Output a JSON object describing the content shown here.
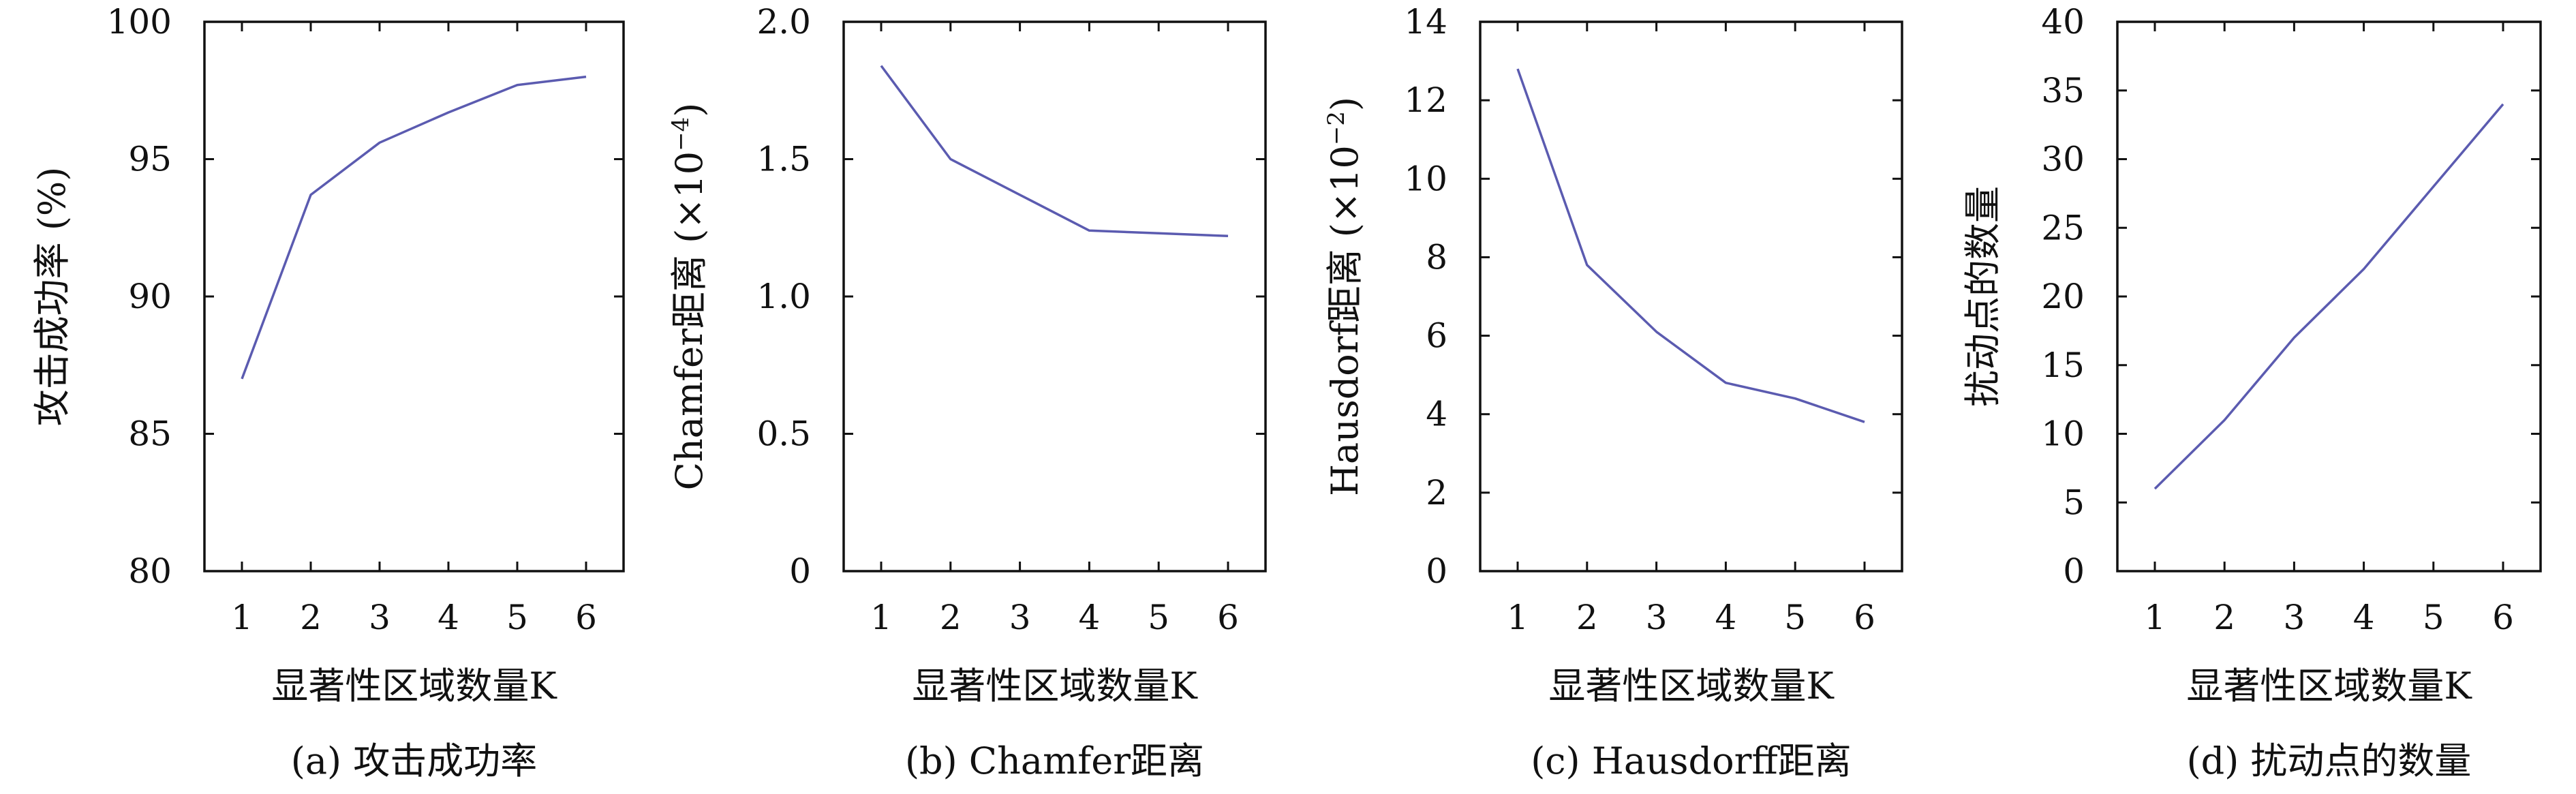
{
  "chart_data": [
    {
      "type": "line",
      "caption": "(a) 攻击成功率",
      "xlabel": "显著性区域数量K",
      "ylabel": "攻击成功率 (%)",
      "ylabel_exponent": "",
      "x": [
        1,
        2,
        3,
        4,
        5,
        6
      ],
      "x_ticks": [
        "1",
        "2",
        "3",
        "4",
        "5",
        "6"
      ],
      "ylim": [
        80,
        100
      ],
      "y_ticks": [
        80,
        85,
        90,
        95,
        100
      ],
      "y_tick_labels": [
        "80",
        "85",
        "90",
        "95",
        "100"
      ],
      "series": [
        {
          "values": [
            87.0,
            93.7,
            95.6,
            96.7,
            97.7,
            98.0
          ],
          "color": "#5b5bb0"
        }
      ],
      "grid": false
    },
    {
      "type": "line",
      "caption": "(b) Chamfer距离",
      "xlabel": "显著性区域数量K",
      "ylabel": "Chamfer距离 (×10",
      "ylabel_exponent": "−4",
      "x": [
        1,
        2,
        3,
        4,
        5,
        6
      ],
      "x_ticks": [
        "1",
        "2",
        "3",
        "4",
        "5",
        "6"
      ],
      "ylim": [
        0,
        2.0
      ],
      "y_ticks": [
        0,
        0.5,
        1.0,
        1.5,
        2.0
      ],
      "y_tick_labels": [
        "0",
        "0.5",
        "1.0",
        "1.5",
        "2.0"
      ],
      "series": [
        {
          "values": [
            1.84,
            1.5,
            1.37,
            1.24,
            1.23,
            1.22
          ],
          "color": "#5b5bb0"
        }
      ],
      "grid": false
    },
    {
      "type": "line",
      "caption": "(c) Hausdorff距离",
      "xlabel": "显著性区域数量K",
      "ylabel": "Hausdorf距离 (×10",
      "ylabel_exponent": "−2",
      "x": [
        1,
        2,
        3,
        4,
        5,
        6
      ],
      "x_ticks": [
        "1",
        "2",
        "3",
        "4",
        "5",
        "6"
      ],
      "ylim": [
        0,
        14
      ],
      "y_ticks": [
        0,
        2,
        4,
        6,
        8,
        10,
        12,
        14
      ],
      "y_tick_labels": [
        "0",
        "2",
        "4",
        "6",
        "8",
        "10",
        "12",
        "14"
      ],
      "series": [
        {
          "values": [
            12.8,
            7.8,
            6.1,
            4.8,
            4.4,
            3.8
          ],
          "color": "#5b5bb0"
        }
      ],
      "grid": false
    },
    {
      "type": "line",
      "caption": "(d) 扰动点的数量",
      "xlabel": "显著性区域数量K",
      "ylabel": "扰动点的数量",
      "ylabel_exponent": "",
      "x": [
        1,
        2,
        3,
        4,
        5,
        6
      ],
      "x_ticks": [
        "1",
        "2",
        "3",
        "4",
        "5",
        "6"
      ],
      "ylim": [
        0,
        40
      ],
      "y_ticks": [
        0,
        5,
        10,
        15,
        20,
        25,
        30,
        35,
        40
      ],
      "y_tick_labels": [
        "0",
        "5",
        "10",
        "15",
        "20",
        "25",
        "30",
        "35",
        "40"
      ],
      "series": [
        {
          "values": [
            6.0,
            11.0,
            17.0,
            22.0,
            28.0,
            34.0
          ],
          "color": "#5b5bb0"
        }
      ],
      "grid": false
    }
  ]
}
